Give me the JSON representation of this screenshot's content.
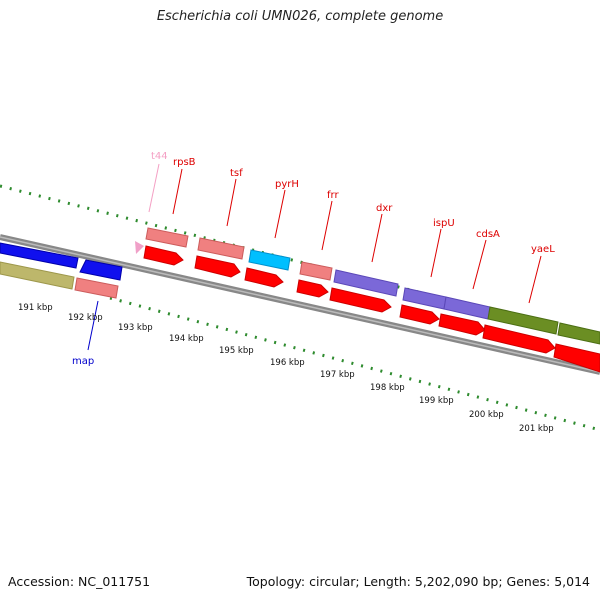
{
  "title": "Escherichia coli UMN026, complete genome",
  "accession": "Accession: NC_011751",
  "topology": "Topology: circular; Length: 5,202,090 bp; Genes: 5,014",
  "colors": {
    "backbone": "#888888",
    "tick_green": "#2e8b2e",
    "cds_red": "#ff0000",
    "rRNA_pink": "#f08080",
    "trna_pink": "#f0a0c8",
    "blue": "#1010ee",
    "purple": "#7b68d8",
    "olive_green": "#6b8e23",
    "khaki": "#bdb76b",
    "cyan": "#00bfff"
  },
  "kbp_labels": [
    "191 kbp",
    "192 kbp",
    "193 kbp",
    "194 kbp",
    "195 kbp",
    "196 kbp",
    "197 kbp",
    "198 kbp",
    "199 kbp",
    "200 kbp",
    "201 kbp"
  ],
  "gene_labels": [
    {
      "id": "t44",
      "text": "t44",
      "color": "#f4a0c4"
    },
    {
      "id": "rpsB",
      "text": "rpsB",
      "color": "#dd0000"
    },
    {
      "id": "tsf",
      "text": "tsf",
      "color": "#dd0000"
    },
    {
      "id": "pyrH",
      "text": "pyrH",
      "color": "#dd0000"
    },
    {
      "id": "frr",
      "text": "frr",
      "color": "#dd0000"
    },
    {
      "id": "dxr",
      "text": "dxr",
      "color": "#dd0000"
    },
    {
      "id": "ispU",
      "text": "ispU",
      "color": "#dd0000"
    },
    {
      "id": "cdsA",
      "text": "cdsA",
      "color": "#dd0000"
    },
    {
      "id": "yaeL",
      "text": "yaeL",
      "color": "#dd0000"
    },
    {
      "id": "map",
      "text": "map",
      "color": "#0000cc"
    }
  ]
}
